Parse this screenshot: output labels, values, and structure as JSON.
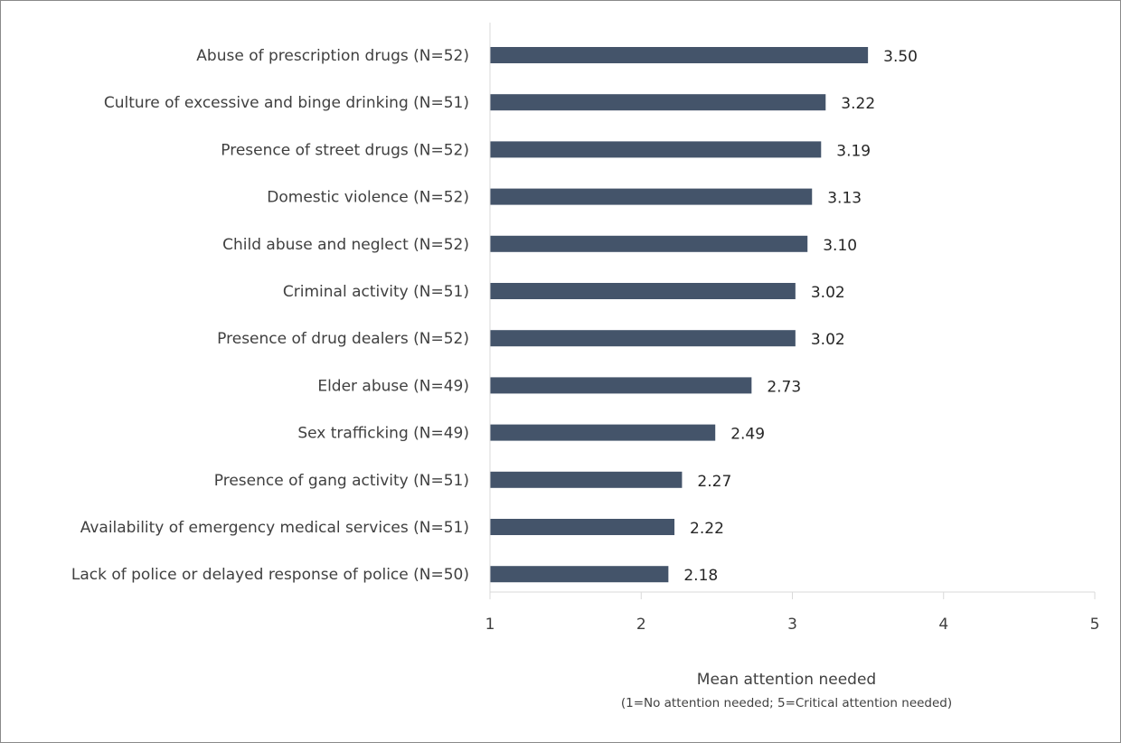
{
  "chart_data": {
    "type": "bar",
    "orientation": "horizontal",
    "categories": [
      "Abuse of prescription drugs (N=52)",
      "Culture of excessive and binge drinking (N=51)",
      "Presence of street drugs (N=52)",
      "Domestic violence (N=52)",
      "Child abuse and neglect (N=52)",
      "Criminal activity (N=51)",
      "Presence of drug dealers (N=52)",
      "Elder abuse (N=49)",
      "Sex trafficking (N=49)",
      "Presence of gang activity (N=51)",
      "Availability of emergency medical services (N=51)",
      "Lack of police or delayed response of police (N=50)"
    ],
    "values": [
      3.5,
      3.22,
      3.19,
      3.13,
      3.1,
      3.02,
      3.02,
      2.73,
      2.49,
      2.27,
      2.22,
      2.18
    ],
    "value_labels": [
      "3.50",
      "3.22",
      "3.19",
      "3.13",
      "3.10",
      "3.02",
      "3.02",
      "2.73",
      "2.49",
      "2.27",
      "2.22",
      "2.18"
    ],
    "xlim": [
      1,
      5
    ],
    "ticks": [
      "1",
      "2",
      "3",
      "4",
      "5"
    ],
    "xlabel": "Mean attention needed",
    "xlabel_note": "(1=No attention needed; 5=Critical attention needed)",
    "bar_color": "#44546a",
    "grid": false
  }
}
